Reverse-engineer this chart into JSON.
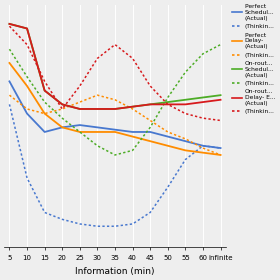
{
  "xlabel": "Information (min)",
  "x_ticks_labels": [
    "5",
    "10",
    "15",
    "20",
    "25",
    "30",
    "35",
    "40",
    "45",
    "50",
    "55",
    "60",
    "infinite"
  ],
  "x_vals": [
    0,
    1,
    2,
    3,
    4,
    5,
    6,
    7,
    8,
    9,
    10,
    11,
    12
  ],
  "background_color": "#eeeeee",
  "grid_color": "#ffffff",
  "lines": {
    "blue_solid": [
      0.72,
      0.58,
      0.5,
      0.52,
      0.53,
      0.52,
      0.51,
      0.5,
      0.5,
      0.48,
      0.46,
      0.44,
      0.43
    ],
    "blue_dotted": [
      0.62,
      0.3,
      0.15,
      0.12,
      0.1,
      0.09,
      0.09,
      0.1,
      0.15,
      0.26,
      0.38,
      0.44,
      0.43
    ],
    "orange_solid": [
      0.8,
      0.7,
      0.58,
      0.52,
      0.5,
      0.5,
      0.5,
      0.48,
      0.46,
      0.44,
      0.42,
      0.41,
      0.4
    ],
    "orange_dotted": [
      0.66,
      0.6,
      0.58,
      0.6,
      0.63,
      0.66,
      0.64,
      0.6,
      0.55,
      0.5,
      0.47,
      0.43,
      0.4
    ],
    "green_solid": [
      0.97,
      0.95,
      0.68,
      0.62,
      0.6,
      0.6,
      0.6,
      0.61,
      0.62,
      0.63,
      0.64,
      0.65,
      0.66
    ],
    "green_dotted": [
      0.86,
      0.74,
      0.63,
      0.56,
      0.5,
      0.44,
      0.4,
      0.42,
      0.52,
      0.65,
      0.76,
      0.84,
      0.88
    ],
    "red_solid": [
      0.97,
      0.95,
      0.68,
      0.62,
      0.6,
      0.6,
      0.6,
      0.61,
      0.62,
      0.62,
      0.62,
      0.63,
      0.64
    ],
    "red_dotted": [
      0.96,
      0.88,
      0.72,
      0.6,
      0.7,
      0.82,
      0.88,
      0.82,
      0.7,
      0.62,
      0.58,
      0.56,
      0.55
    ]
  },
  "colors": {
    "blue": "#4878cf",
    "orange": "#ff8c00",
    "green": "#4dac26",
    "red": "#d7191c"
  },
  "legend_entries": [
    [
      "Perfect \nSchedul...\n(Actual)",
      "blue",
      "-"
    ],
    [
      "(Thinkin...",
      "blue",
      ":"
    ],
    [
      "Perfect \nDelay-\n(Actual)",
      "orange",
      "-"
    ],
    [
      "(Thinkin...",
      "orange",
      ":"
    ],
    [
      "On-rout...\nSchedul...\n(Actual)",
      "green",
      "-"
    ],
    [
      "(Thinkin...",
      "green",
      ":"
    ],
    [
      "On-rout...\nDelay- E...\n(Actual)",
      "red",
      "-"
    ],
    [
      "(Thinkin...",
      "red",
      ":"
    ]
  ]
}
